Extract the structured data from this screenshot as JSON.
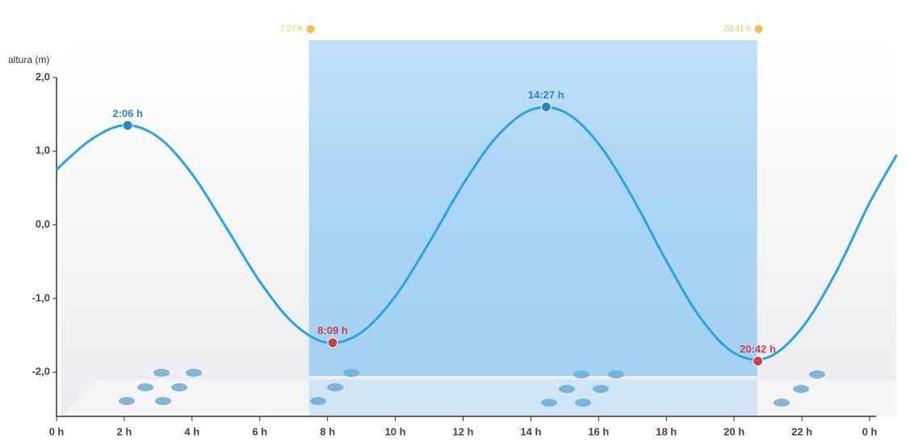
{
  "chart_data": {
    "type": "line",
    "ylabel": "altura (m)",
    "x": [
      0,
      1,
      2,
      3,
      4,
      5,
      6,
      7,
      8,
      9,
      10,
      11,
      12,
      13,
      14,
      15,
      16,
      17,
      18,
      19,
      20,
      21,
      22,
      23,
      24,
      24.8
    ],
    "series": [
      {
        "color": "#29a3e6",
        "values": [
          0.75,
          1.15,
          1.35,
          1.19,
          0.69,
          -0.03,
          -0.77,
          -1.34,
          -1.6,
          -1.46,
          -0.97,
          -0.24,
          0.55,
          1.2,
          1.56,
          1.53,
          1.1,
          0.37,
          -0.49,
          -1.26,
          -1.74,
          -1.8,
          -1.4,
          -0.65,
          0.3,
          0.95
        ]
      }
    ],
    "extremes": [
      {
        "label": "2:06 h",
        "x": 2.1,
        "value": 1.35,
        "color": "#2b86c5"
      },
      {
        "label": "8:09 h",
        "x": 8.15,
        "value": -1.6,
        "color": "#c9414e"
      },
      {
        "label": "14:27 h",
        "x": 14.45,
        "value": 1.6,
        "color": "#2b86c5"
      },
      {
        "label": "20:42 h",
        "x": 20.7,
        "value": -1.85,
        "color": "#c9414e"
      }
    ],
    "daylight": {
      "sunrise": {
        "x": 7.45,
        "label": "7:27 h"
      },
      "sunset": {
        "x": 20.68,
        "label": "20:41 h"
      },
      "color": "#5fb4f0"
    },
    "xlim": [
      0,
      24.8
    ],
    "ylim": [
      -2.6,
      2.0
    ],
    "xticks": [
      {
        "value": 0,
        "label": "0 h"
      },
      {
        "value": 2,
        "label": "2 h"
      },
      {
        "value": 4,
        "label": "4 h"
      },
      {
        "value": 6,
        "label": "6 h"
      },
      {
        "value": 8,
        "label": "8 h"
      },
      {
        "value": 10,
        "label": "10 h"
      },
      {
        "value": 12,
        "label": "12 h"
      },
      {
        "value": 14,
        "label": "14 h"
      },
      {
        "value": 16,
        "label": "16 h"
      },
      {
        "value": 18,
        "label": "18 h"
      },
      {
        "value": 20,
        "label": "20 h"
      },
      {
        "value": 22,
        "label": "22 h"
      },
      {
        "value": 24,
        "label": "0 h"
      }
    ],
    "yticks": [
      {
        "value": 2,
        "label": "2,0"
      },
      {
        "value": 1,
        "label": "1,0"
      },
      {
        "value": 0,
        "label": "0,0"
      },
      {
        "value": -1,
        "label": "-1,0"
      },
      {
        "value": -2,
        "label": "-2,0"
      }
    ]
  }
}
